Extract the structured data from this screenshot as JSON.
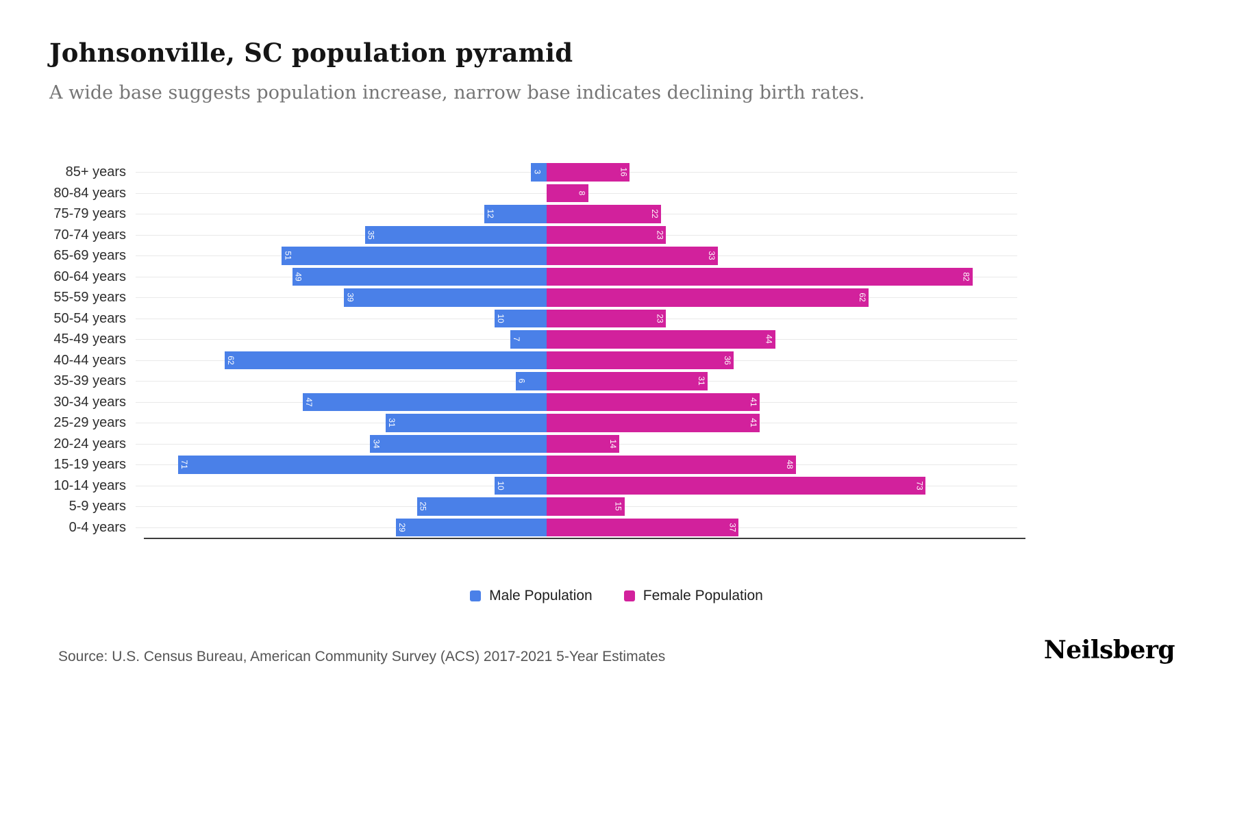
{
  "title": "Johnsonville, SC population pyramid",
  "subtitle": "A wide base suggests population increase, narrow base indicates declining birth rates.",
  "legend": {
    "male_label": "Male Population",
    "female_label": "Female Population"
  },
  "source": "Source: U.S. Census Bureau, American Community Survey (ACS) 2017-2021 5-Year Estimates",
  "brand": "Neilsberg",
  "colors": {
    "male": "#4a80e8",
    "female": "#d2219c",
    "gridline": "#e9e9e9",
    "axis": "#3c3c3c"
  },
  "chart_data": {
    "type": "bar",
    "variant": "population-pyramid",
    "orientation": "horizontal",
    "grid": true,
    "legend_position": "bottom",
    "value_axis_max": 82,
    "categories": [
      "85+ years",
      "80-84 years",
      "75-79 years",
      "70-74 years",
      "65-69 years",
      "60-64 years",
      "55-59 years",
      "50-54 years",
      "45-49 years",
      "40-44 years",
      "35-39 years",
      "30-34 years",
      "25-29 years",
      "20-24 years",
      "15-19 years",
      "10-14 years",
      "5-9 years",
      "0-4 years"
    ],
    "series": [
      {
        "name": "Male Population",
        "side": "left",
        "color": "#4a80e8",
        "values": [
          3,
          0,
          12,
          35,
          51,
          49,
          39,
          10,
          7,
          62,
          6,
          47,
          31,
          34,
          71,
          10,
          25,
          29
        ]
      },
      {
        "name": "Female Population",
        "side": "right",
        "color": "#d2219c",
        "values": [
          16,
          8,
          22,
          23,
          33,
          82,
          62,
          23,
          44,
          36,
          31,
          41,
          41,
          14,
          48,
          73,
          15,
          37
        ]
      }
    ]
  }
}
